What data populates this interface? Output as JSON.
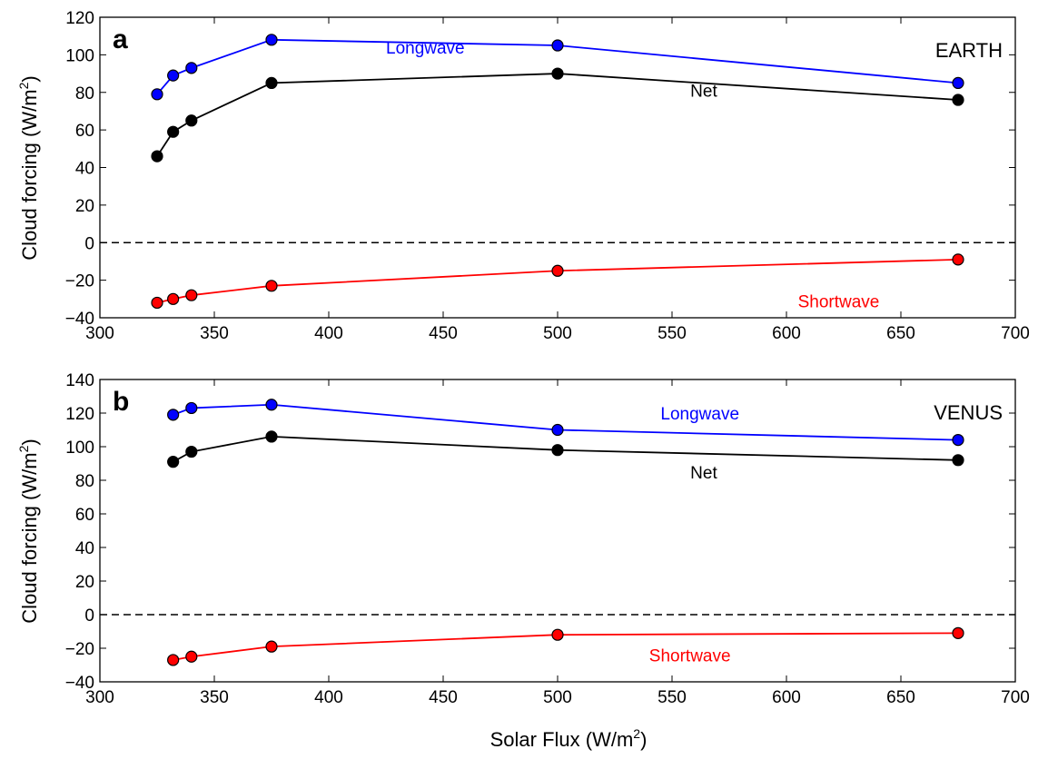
{
  "chart_data": [
    {
      "type": "line",
      "panel_letter": "a",
      "panel_label": "EARTH",
      "ylabel": "Cloud forcing (W/m",
      "ylabel_sup": "2",
      "ylabel_end": ")",
      "xlim": [
        300,
        700
      ],
      "ylim": [
        -40,
        120
      ],
      "xticks": [
        "300",
        "350",
        "400",
        "450",
        "500",
        "550",
        "600",
        "650",
        "700"
      ],
      "yticks": [
        "−40",
        "−20",
        "0",
        "20",
        "40",
        "60",
        "80",
        "100",
        "120"
      ],
      "xtick_values": [
        300,
        350,
        400,
        450,
        500,
        550,
        600,
        650,
        700
      ],
      "ytick_values": [
        -40,
        -20,
        0,
        20,
        40,
        60,
        80,
        100,
        120
      ],
      "zero_line": "dashed",
      "series": [
        {
          "name": "Longwave",
          "color": "#0000ff",
          "label_x": 425,
          "label_y": 104,
          "x": [
            325,
            332,
            340,
            375,
            500,
            675
          ],
          "y": [
            79,
            89,
            93,
            108,
            105,
            85
          ]
        },
        {
          "name": "Net",
          "color": "#000000",
          "label_x": 558,
          "label_y": 81,
          "x": [
            325,
            332,
            340,
            375,
            500,
            675
          ],
          "y": [
            46,
            59,
            65,
            85,
            90,
            76
          ]
        },
        {
          "name": "Shortwave",
          "color": "#ff0000",
          "label_x": 605,
          "label_y": -31,
          "x": [
            325,
            332,
            340,
            375,
            500,
            675
          ],
          "y": [
            -32,
            -30,
            -28,
            -23,
            -15,
            -9
          ]
        }
      ]
    },
    {
      "type": "line",
      "panel_letter": "b",
      "panel_label": "VENUS",
      "ylabel": "Cloud forcing (W/m",
      "ylabel_sup": "2",
      "ylabel_end": ")",
      "xlim": [
        300,
        700
      ],
      "ylim": [
        -40,
        140
      ],
      "xticks": [
        "300",
        "350",
        "400",
        "450",
        "500",
        "550",
        "600",
        "650",
        "700"
      ],
      "yticks": [
        "−40",
        "−20",
        "0",
        "20",
        "40",
        "60",
        "80",
        "100",
        "120",
        "140"
      ],
      "xtick_values": [
        300,
        350,
        400,
        450,
        500,
        550,
        600,
        650,
        700
      ],
      "ytick_values": [
        -40,
        -20,
        0,
        20,
        40,
        60,
        80,
        100,
        120,
        140
      ],
      "zero_line": "dashed",
      "series": [
        {
          "name": "Longwave",
          "color": "#0000ff",
          "label_x": 545,
          "label_y": 120,
          "x": [
            332,
            340,
            375,
            500,
            675
          ],
          "y": [
            119,
            123,
            125,
            110,
            104
          ]
        },
        {
          "name": "Net",
          "color": "#000000",
          "label_x": 558,
          "label_y": 85,
          "x": [
            332,
            340,
            375,
            500,
            675
          ],
          "y": [
            91,
            97,
            106,
            98,
            92
          ]
        },
        {
          "name": "Shortwave",
          "color": "#ff0000",
          "label_x": 540,
          "label_y": -24,
          "x": [
            332,
            340,
            375,
            500,
            675
          ],
          "y": [
            -27,
            -25,
            -19,
            -12,
            -11
          ]
        }
      ]
    }
  ],
  "shared_xlabel": "Solar Flux (W/m",
  "shared_xlabel_sup": "2",
  "shared_xlabel_end": ")"
}
